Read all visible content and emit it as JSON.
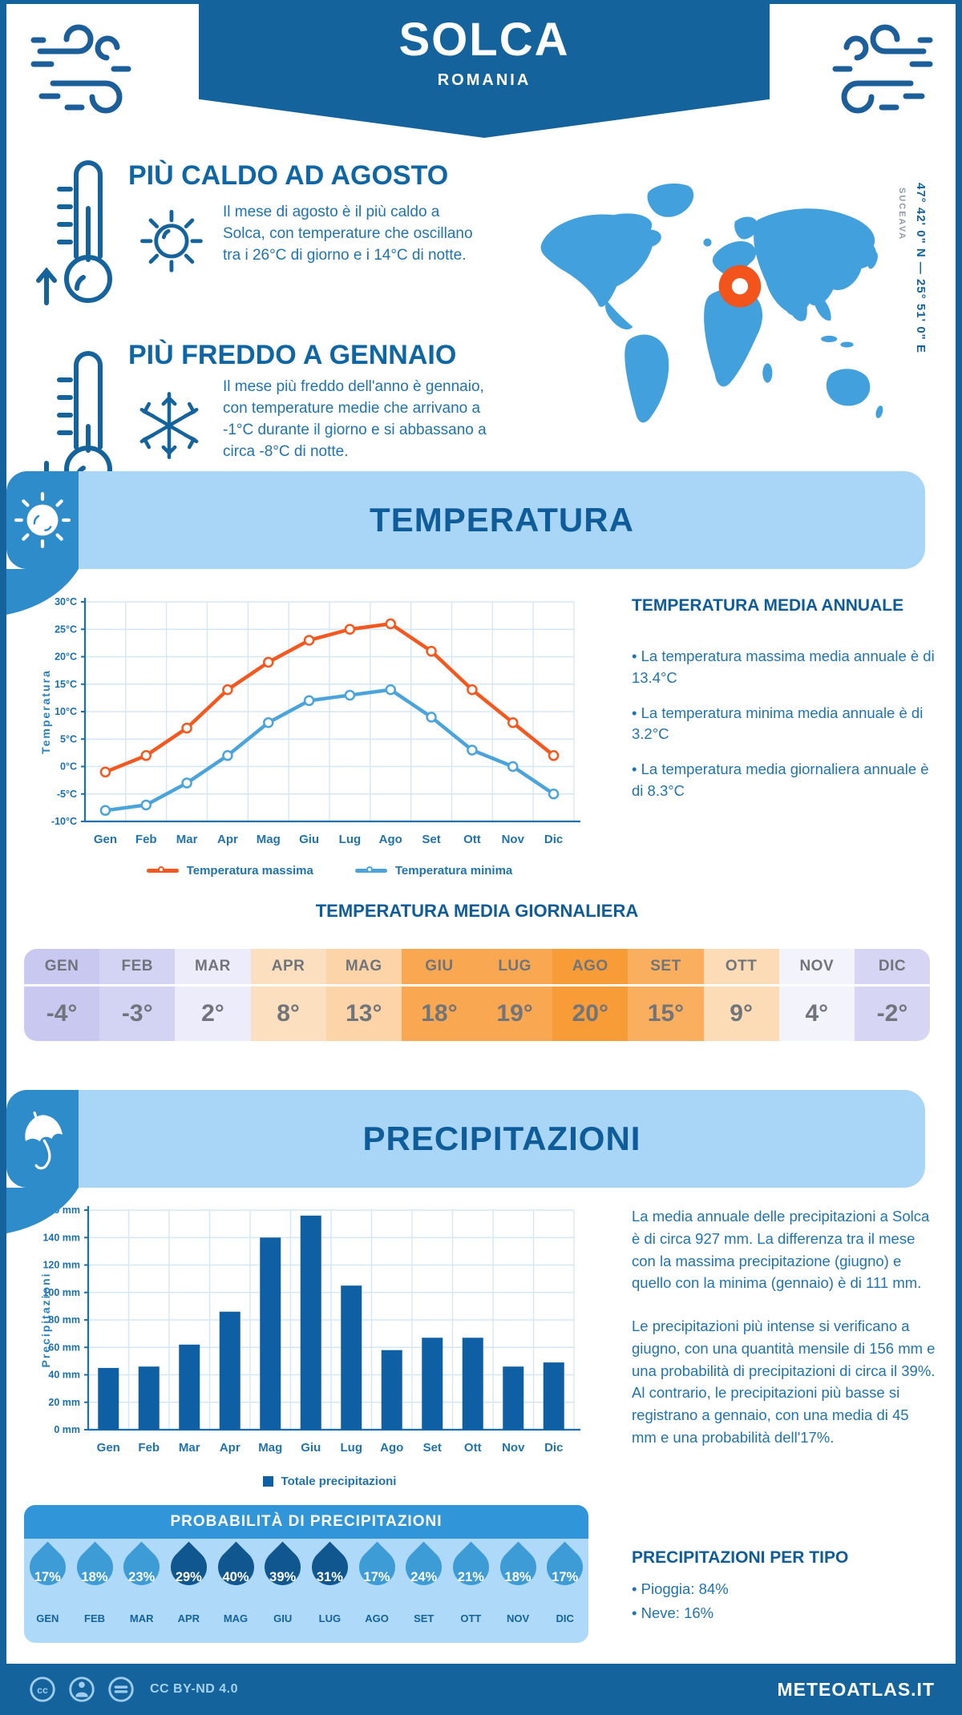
{
  "header": {
    "city": "SOLCA",
    "country": "ROMANIA"
  },
  "map": {
    "coordinates": "47° 42' 0\" N — 25° 51' 0\" E",
    "region_label": "SUCEAVA",
    "land_color": "#42a0dd",
    "marker_color": "#f2541b"
  },
  "highlights": {
    "hot": {
      "title": "PIÙ CALDO AD AGOSTO",
      "text": "Il mese di agosto è il più caldo a Solca, con temperature che oscillano tra i 26°C di giorno e i 14°C di notte."
    },
    "cold": {
      "title": "PIÙ FREDDO A GENNAIO",
      "text": "Il mese più freddo dell'anno è gennaio, con temperature medie che arrivano a -1°C durante il giorno e si abbassano a circa -8°C di notte."
    }
  },
  "temperature": {
    "section_title": "TEMPERATURA",
    "annual_title": "TEMPERATURA MEDIA ANNUALE",
    "annual_bullets": [
      "• La temperatura massima media annuale è di 13.4°C",
      "• La temperatura minima media annuale è di 3.2°C",
      "• La temperatura media giornaliera annuale è di 8.3°C"
    ],
    "daily_title": "TEMPERATURA MEDIA GIORNALIERA",
    "daily_table": {
      "months": [
        "GEN",
        "FEB",
        "MAR",
        "APR",
        "MAG",
        "GIU",
        "LUG",
        "AGO",
        "SET",
        "OTT",
        "NOV",
        "DIC"
      ],
      "values": [
        "-4°",
        "-3°",
        "2°",
        "8°",
        "13°",
        "18°",
        "19°",
        "20°",
        "15°",
        "9°",
        "4°",
        "-2°"
      ],
      "colors": [
        "#c8c8f0",
        "#d3d3f4",
        "#ececfa",
        "#fbdfbe",
        "#fcd4a8",
        "#f9a751",
        "#f9a751",
        "#f89c38",
        "#faaf5e",
        "#fbdcb6",
        "#f3f3fb",
        "#d6d6f4"
      ]
    }
  },
  "precipitation": {
    "section_title": "PRECIPITAZIONI",
    "paragraphs": [
      "La media annuale delle precipitazioni a Solca è di circa 927 mm. La differenza tra il mese con la massima precipitazione (giugno) e quello con la minima (gennaio) è di 111 mm.",
      "Le precipitazioni più intense si verificano a giugno, con una quantità mensile di 156 mm e una probabilità di precipitazioni di circa il 39%. Al contrario, le precipitazioni più basse si registrano a gennaio, con una media di 45 mm e una probabilità dell'17%."
    ],
    "types_title": "PRECIPITAZIONI PER TIPO",
    "types_bullets": [
      "• Pioggia: 84%",
      "• Neve: 16%"
    ],
    "probability": {
      "title": "PROBABILITÀ DI PRECIPITAZIONI",
      "months": [
        "GEN",
        "FEB",
        "MAR",
        "APR",
        "MAG",
        "GIU",
        "LUG",
        "AGO",
        "SET",
        "OTT",
        "NOV",
        "DIC"
      ],
      "values": [
        "17%",
        "18%",
        "23%",
        "29%",
        "40%",
        "39%",
        "31%",
        "17%",
        "24%",
        "21%",
        "18%",
        "17%"
      ],
      "dark": [
        false,
        false,
        false,
        true,
        true,
        true,
        true,
        false,
        false,
        false,
        false,
        false
      ],
      "drop_light": "#3d9bd6",
      "drop_dark": "#11578f"
    }
  },
  "chart_data": [
    {
      "type": "line",
      "x": [
        "Gen",
        "Feb",
        "Mar",
        "Apr",
        "Mag",
        "Giu",
        "Lug",
        "Ago",
        "Set",
        "Ott",
        "Nov",
        "Dic"
      ],
      "ylabel": "Temperatura",
      "ylim": [
        -10,
        30
      ],
      "ytick_step": 5,
      "ytick_suffix": "°C",
      "grid": true,
      "legend_position": "bottom",
      "series": [
        {
          "name": "Temperatura massima",
          "color": "#f4581e",
          "values": [
            -1,
            2,
            7,
            14,
            19,
            23,
            25,
            26,
            21,
            14,
            8,
            2
          ]
        },
        {
          "name": "Temperatura minima",
          "color": "#4ba3dc",
          "values": [
            -8,
            -7,
            -3,
            2,
            8,
            12,
            13,
            14,
            9,
            3,
            0,
            -5
          ]
        }
      ]
    },
    {
      "type": "bar",
      "x": [
        "Gen",
        "Feb",
        "Mar",
        "Apr",
        "Mag",
        "Giu",
        "Lug",
        "Ago",
        "Set",
        "Ott",
        "Nov",
        "Dic"
      ],
      "ylabel": "Precipitazioni",
      "ylim": [
        0,
        160
      ],
      "ytick_step": 20,
      "ytick_suffix": " mm",
      "grid": true,
      "legend_position": "bottom",
      "series": [
        {
          "name": "Totale precipitazioni",
          "color": "#0e5fa4",
          "values": [
            45,
            46,
            62,
            86,
            140,
            156,
            105,
            58,
            67,
            67,
            46,
            49
          ]
        }
      ]
    }
  ],
  "footer": {
    "license": "CC BY-ND 4.0",
    "site": "METEOATLAS.IT"
  }
}
